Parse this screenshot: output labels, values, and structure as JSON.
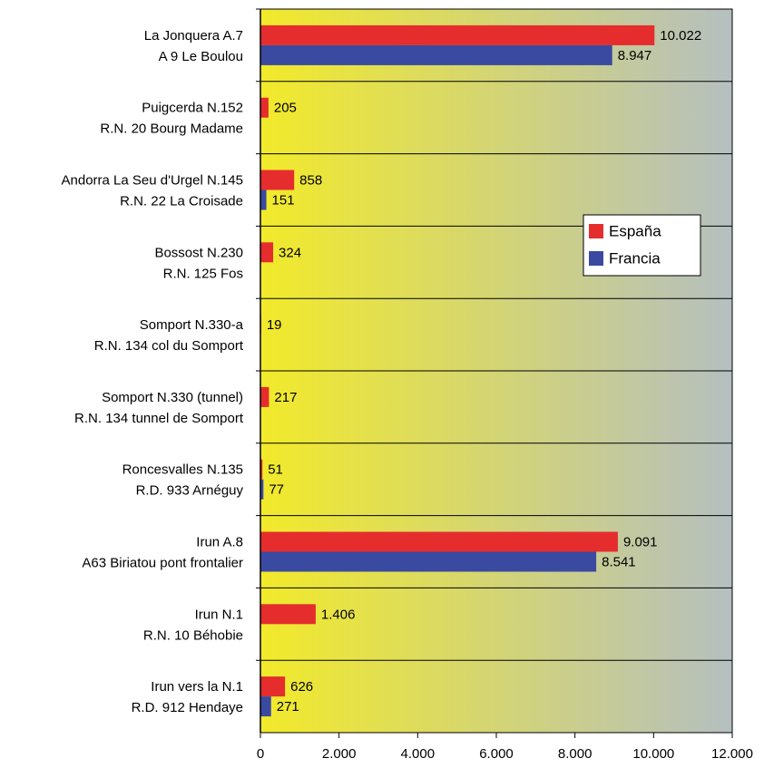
{
  "chart_data": {
    "type": "hbar",
    "categories": [
      [
        "La Jonquera A.7",
        "A 9 Le Boulou"
      ],
      [
        "Puigcerda N.152",
        "R.N. 20 Bourg Madame"
      ],
      [
        "Andorra La Seu d'Urgel N.145",
        "R.N. 22 La Croisade"
      ],
      [
        "Bossost N.230",
        "R.N. 125 Fos"
      ],
      [
        "Somport N.330-a",
        "R.N. 134 col du Somport"
      ],
      [
        "Somport N.330 (tunnel)",
        "R.N. 134 tunnel de Somport"
      ],
      [
        "Roncesvalles N.135",
        "R.D. 933 Arnéguy"
      ],
      [
        "Irun A.8",
        "A63 Biriatou pont frontalier"
      ],
      [
        "Irun N.1",
        "R.N. 10 Béhobie"
      ],
      [
        "Irun vers la N.1",
        "R.D. 912 Hendaye"
      ]
    ],
    "series": [
      {
        "name": "España",
        "color": "#e52d2d",
        "values": [
          10022,
          205,
          858,
          324,
          19,
          217,
          51,
          9091,
          1406,
          626
        ],
        "value_labels": [
          "10.022",
          "205",
          "858",
          "324",
          "19",
          "217",
          "51",
          "9.091",
          "1.406",
          "626"
        ]
      },
      {
        "name": "Francia",
        "color": "#3a4aa0",
        "values": [
          8947,
          null,
          151,
          null,
          null,
          null,
          77,
          8541,
          null,
          271
        ],
        "value_labels": [
          "8.947",
          null,
          "151",
          null,
          null,
          null,
          "77",
          "8.541",
          null,
          "271"
        ]
      }
    ],
    "xlim": [
      0,
      12000
    ],
    "xticks": [
      0,
      {
        "value": 2000,
        "label": "2.000"
      },
      {
        "value": 4000,
        "label": "4.000"
      },
      {
        "value": 6000,
        "label": "6.000"
      },
      {
        "value": 8000,
        "label": "8.000"
      },
      {
        "value": 10000,
        "label": "10.000"
      },
      {
        "value": 12000,
        "label": "12.000"
      }
    ],
    "legend": "upper-right"
  }
}
